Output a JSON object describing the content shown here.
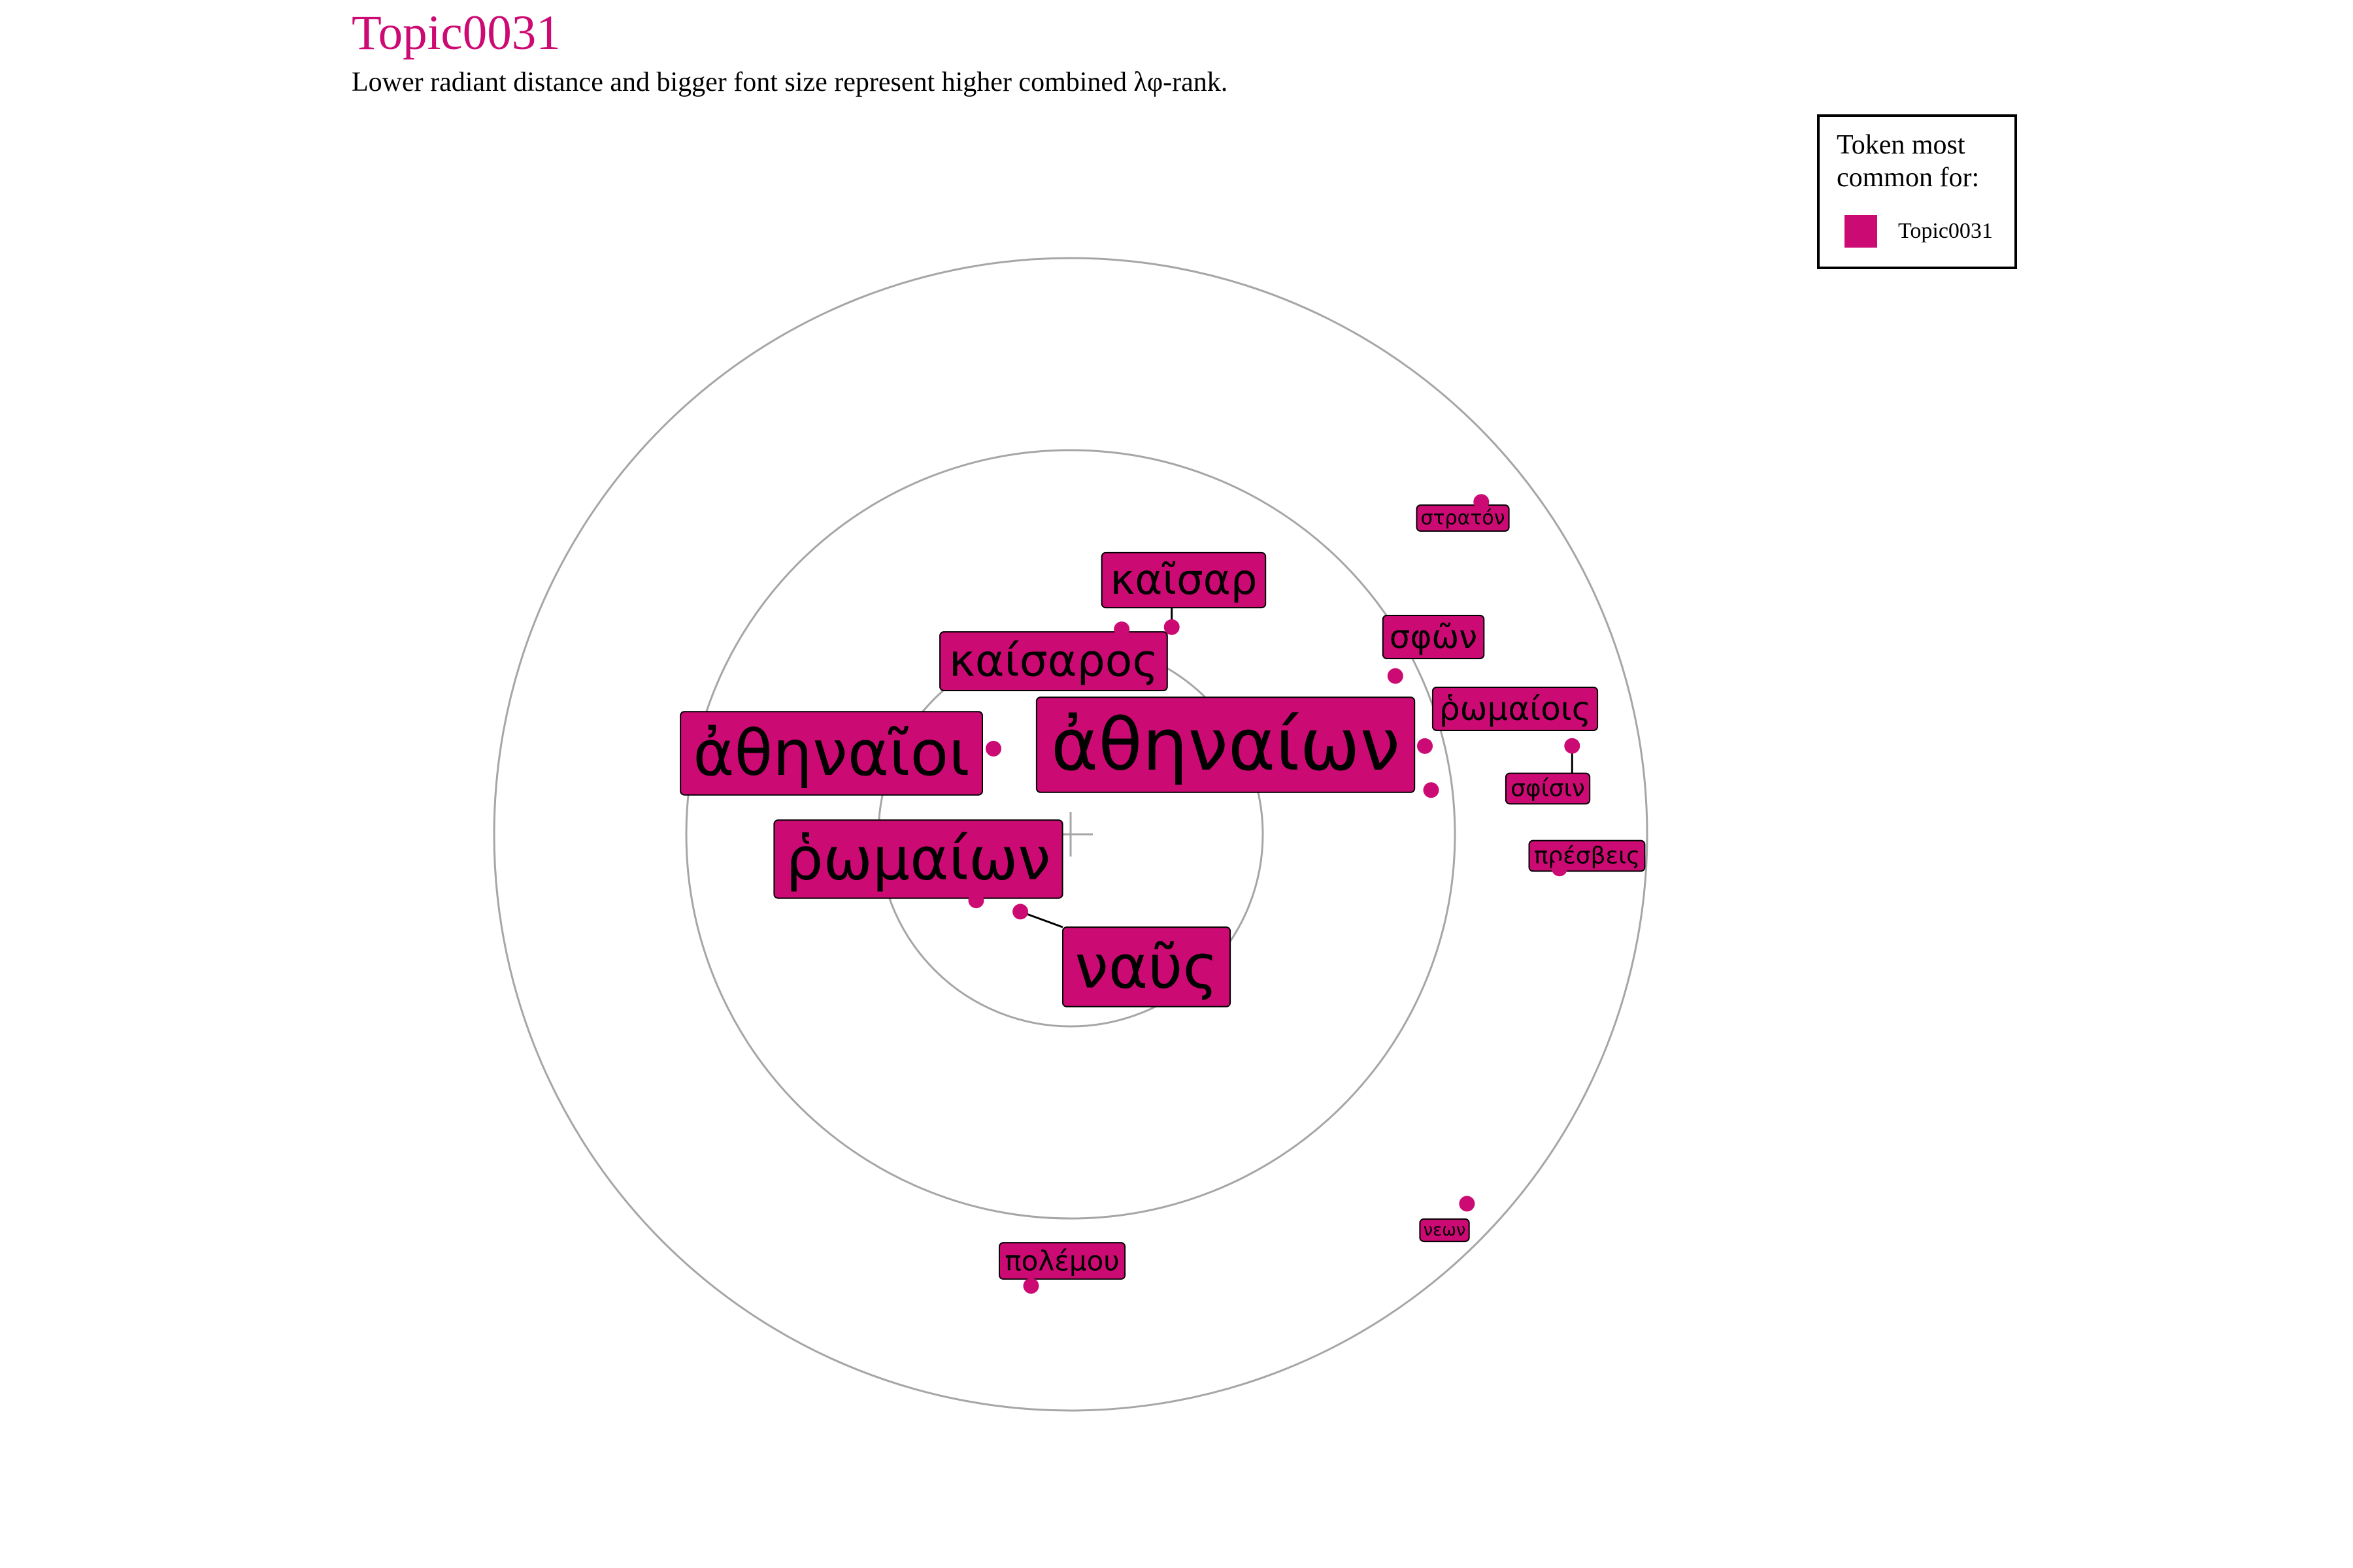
{
  "title": "Topic0031",
  "subtitle": "Lower radiant distance and bigger font size represent higher combined λφ-rank.",
  "legend": {
    "title": "Token most common for:",
    "entries": [
      {
        "label": "Topic0031",
        "color": "#cc0a73"
      }
    ],
    "placement": "top-right"
  },
  "colors": {
    "accent": "#cc0a73",
    "rings": "#a6a6a6",
    "label_border": "#000000"
  },
  "chart_data": {
    "type": "scatter",
    "title": "Topic0031",
    "subtitle": "Lower radiant distance and bigger font size represent higher combined λφ-rank.",
    "coordinate_system": "polar",
    "radial_rings": [
      1,
      2,
      3
    ],
    "radial_max": 3,
    "center_marker": true,
    "grid": true,
    "series": [
      {
        "name": "Topic0031",
        "points": [
          {
            "token": "ἀθηναίων",
            "radius": 1.89,
            "angle": 7,
            "size_rank": 1
          },
          {
            "token": "ἀθηναῖοι",
            "radius": 0.6,
            "angle": 132,
            "size_rank": 2
          },
          {
            "token": "ναῦς",
            "radius": 0.48,
            "angle": 237,
            "size_rank": 3
          },
          {
            "token": "ῥωμαίων",
            "radius": 0.6,
            "angle": 215,
            "size_rank": 4
          },
          {
            "token": "καίσαρος",
            "radius": 1.1,
            "angle": 76,
            "size_rank": 5
          },
          {
            "token": "καῖσαρ",
            "radius": 1.2,
            "angle": 64,
            "size_rank": 6
          },
          {
            "token": "ῥωμαίοις",
            "radius": 1.9,
            "angle": 14,
            "size_rank": 7
          },
          {
            "token": "σφῶν",
            "radius": 1.88,
            "angle": 26,
            "size_rank": 8
          },
          {
            "token": "πολέμου",
            "radius": 2.36,
            "angle": 265,
            "size_rank": 9
          },
          {
            "token": "σφίσιν",
            "radius": 2.65,
            "angle": 10,
            "size_rank": 10
          },
          {
            "token": "πρέσβεις",
            "radius": 2.55,
            "angle": 356,
            "size_rank": 11
          },
          {
            "token": "στρατόν",
            "radius": 2.75,
            "angle": 39,
            "size_rank": 12
          },
          {
            "token": "νεων",
            "radius": 2.82,
            "angle": 317,
            "size_rank": 13
          }
        ]
      }
    ]
  }
}
